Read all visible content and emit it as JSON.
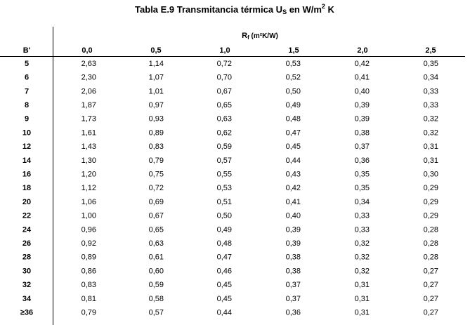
{
  "header": {
    "title": {
      "main": "Tabla E.9  Transmitancia térmica U",
      "sub": "S",
      "mid": " en W/m",
      "sup": "2",
      "end": " K"
    }
  },
  "table": {
    "group_header": {
      "main": "R",
      "sub": "f",
      "rest": " (m²K/W)"
    },
    "row_header": "B'",
    "columns": [
      "0,0",
      "0,5",
      "1,0",
      "1,5",
      "2,0",
      "2,5"
    ],
    "rows": [
      {
        "label": "5",
        "cells": [
          "2,63",
          "1,14",
          "0,72",
          "0,53",
          "0,42",
          "0,35"
        ]
      },
      {
        "label": "6",
        "cells": [
          "2,30",
          "1,07",
          "0,70",
          "0,52",
          "0,41",
          "0,34"
        ]
      },
      {
        "label": "7",
        "cells": [
          "2,06",
          "1,01",
          "0,67",
          "0,50",
          "0,40",
          "0,33"
        ]
      },
      {
        "label": "8",
        "cells": [
          "1,87",
          "0,97",
          "0,65",
          "0,49",
          "0,39",
          "0,33"
        ]
      },
      {
        "label": "9",
        "cells": [
          "1,73",
          "0,93",
          "0,63",
          "0,48",
          "0,39",
          "0,32"
        ]
      },
      {
        "label": "10",
        "cells": [
          "1,61",
          "0,89",
          "0,62",
          "0,47",
          "0,38",
          "0,32"
        ]
      },
      {
        "label": "12",
        "cells": [
          "1,43",
          "0,83",
          "0,59",
          "0,45",
          "0,37",
          "0,31"
        ]
      },
      {
        "label": "14",
        "cells": [
          "1,30",
          "0,79",
          "0,57",
          "0,44",
          "0,36",
          "0,31"
        ]
      },
      {
        "label": "16",
        "cells": [
          "1,20",
          "0,75",
          "0,55",
          "0,43",
          "0,35",
          "0,30"
        ]
      },
      {
        "label": "18",
        "cells": [
          "1,12",
          "0,72",
          "0,53",
          "0,42",
          "0,35",
          "0,29"
        ]
      },
      {
        "label": "20",
        "cells": [
          "1,06",
          "0,69",
          "0,51",
          "0,41",
          "0,34",
          "0,29"
        ]
      },
      {
        "label": "22",
        "cells": [
          "1,00",
          "0,67",
          "0,50",
          "0,40",
          "0,33",
          "0,29"
        ]
      },
      {
        "label": "24",
        "cells": [
          "0,96",
          "0,65",
          "0,49",
          "0,39",
          "0,33",
          "0,28"
        ]
      },
      {
        "label": "26",
        "cells": [
          "0,92",
          "0,63",
          "0,48",
          "0,39",
          "0,32",
          "0,28"
        ]
      },
      {
        "label": "28",
        "cells": [
          "0,89",
          "0,61",
          "0,47",
          "0,38",
          "0,32",
          "0,28"
        ]
      },
      {
        "label": "30",
        "cells": [
          "0,86",
          "0,60",
          "0,46",
          "0,38",
          "0,32",
          "0,27"
        ]
      },
      {
        "label": "32",
        "cells": [
          "0,83",
          "0,59",
          "0,45",
          "0,37",
          "0,31",
          "0,27"
        ]
      },
      {
        "label": "34",
        "cells": [
          "0,81",
          "0,58",
          "0,45",
          "0,37",
          "0,31",
          "0,27"
        ]
      },
      {
        "label": "≥36",
        "cells": [
          "0,79",
          "0,57",
          "0,44",
          "0,36",
          "0,31",
          "0,27"
        ]
      }
    ]
  }
}
